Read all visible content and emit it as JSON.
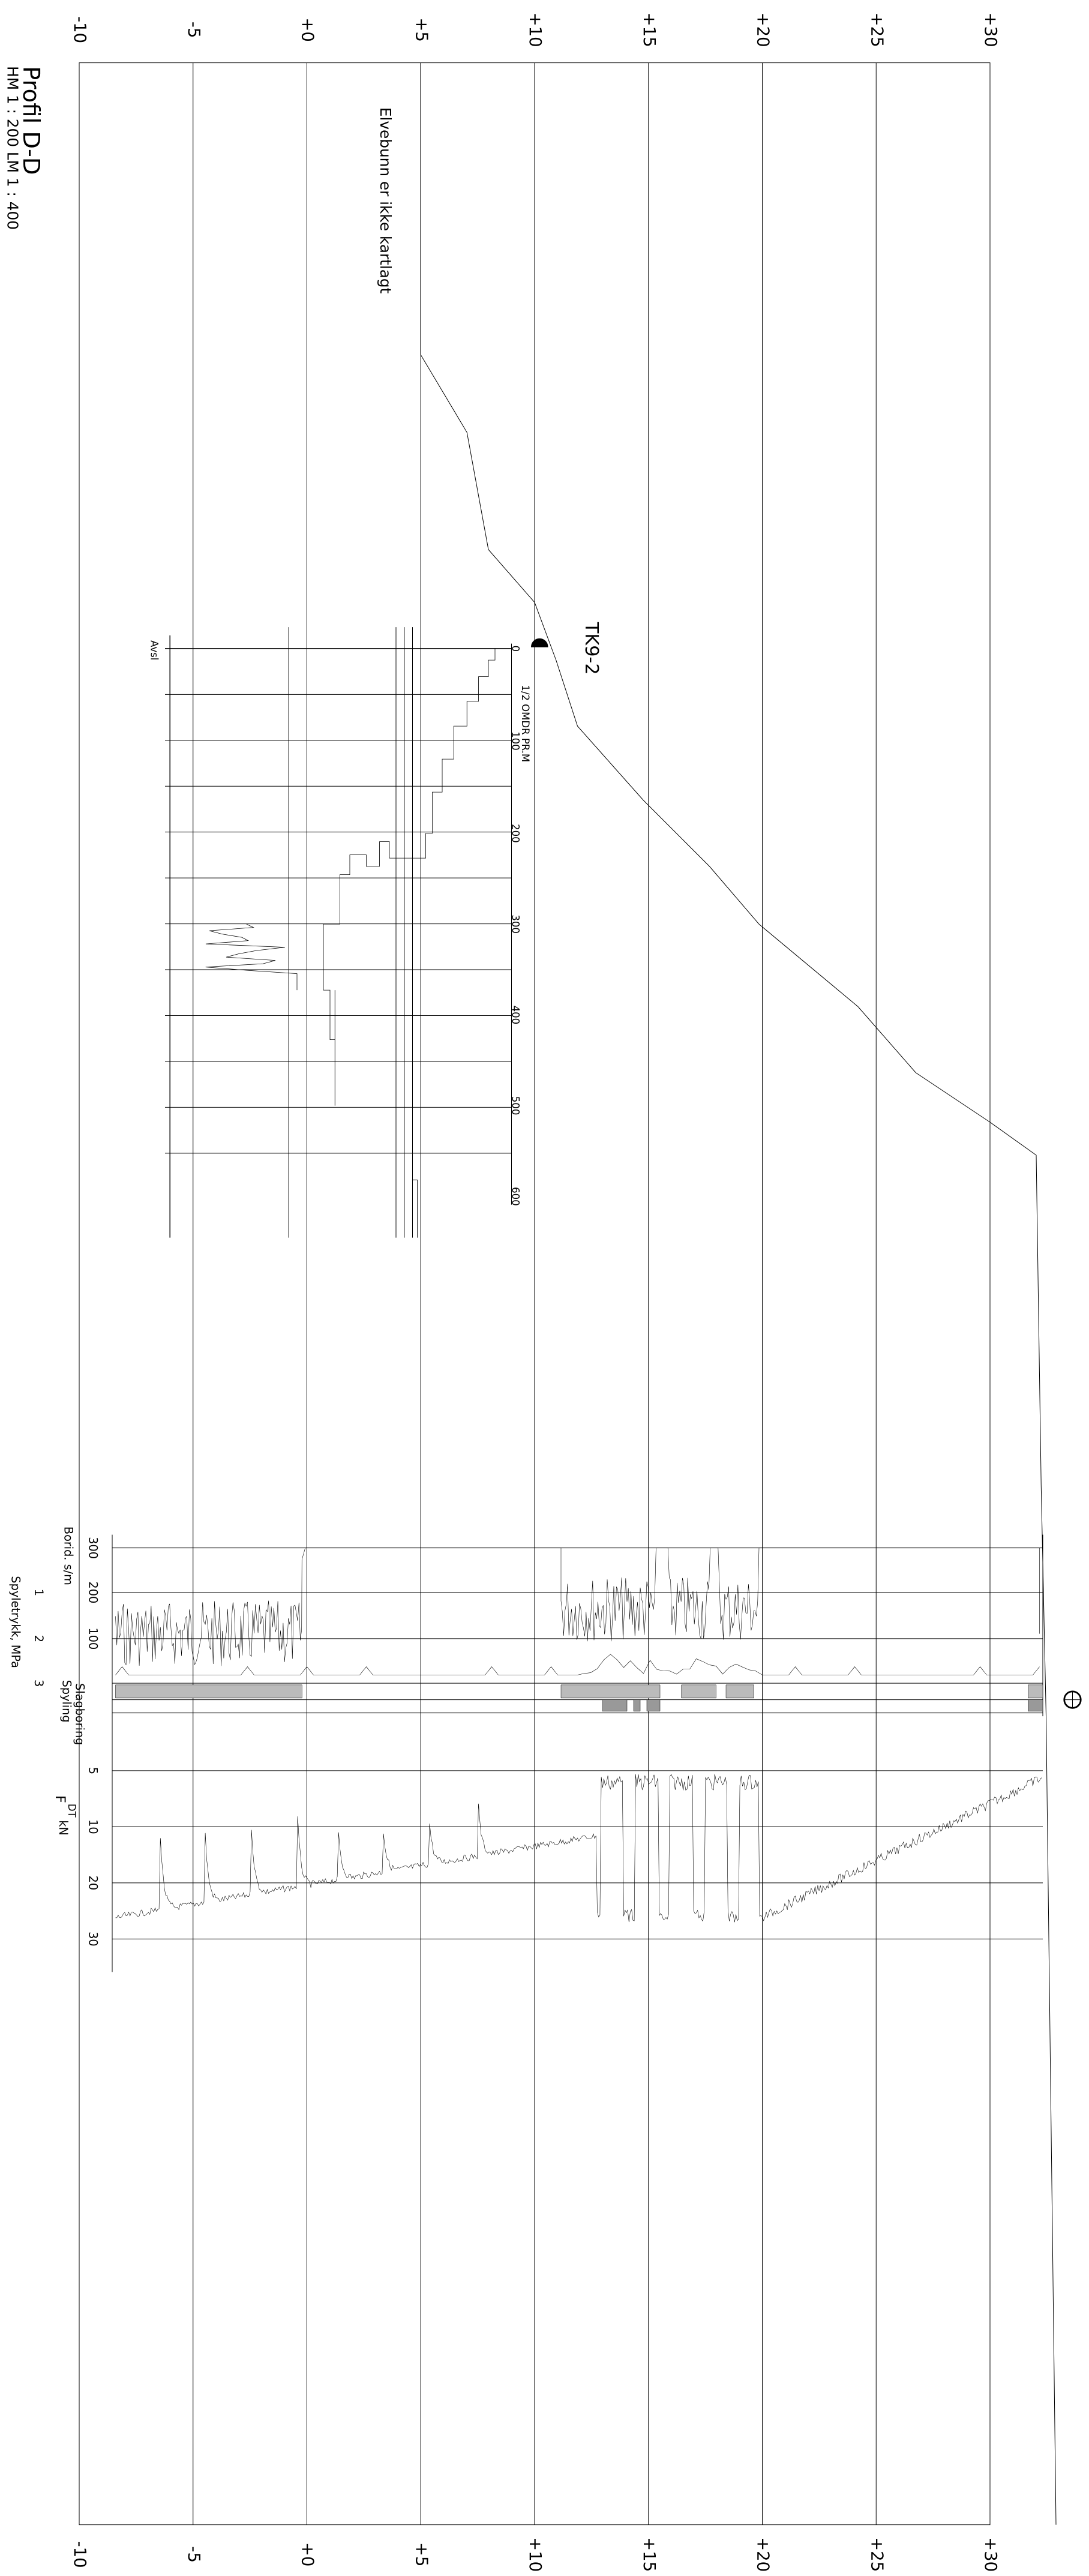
{
  "title": "Profil D-D",
  "scale": "HM 1 : 200   LM 1 : 400",
  "elevation_labels_top": [
    "-10",
    "-5",
    "+0",
    "+5",
    "+10",
    "+15",
    "+20",
    "+25",
    "+30"
  ],
  "elevation_labels_bottom": [
    "-10",
    "-5",
    "+0",
    "+5",
    "+10",
    "+15",
    "+20",
    "+25",
    "+30"
  ],
  "annotation": "Elvebunn er ikke kartlagt",
  "borehole": {
    "name": "TK9-2",
    "end_label": "Avsl",
    "rotation_label": "1/2 OMDR PR.M",
    "depth_labels": [
      "0",
      "100",
      "200",
      "300",
      "400",
      "500",
      "600"
    ]
  },
  "drilling_log": {
    "penetration_label": "Borid. s/m",
    "penetration_ticks": [
      "300",
      "200",
      "100"
    ],
    "pressure_label": "Spyletrykk, MPa",
    "pressure_ticks": [
      "1",
      "2",
      "3"
    ],
    "flushing_label": "Spyling",
    "hammering_label": "Slagboring",
    "force_ticks": [
      "5",
      "10",
      "20",
      "30"
    ],
    "force_label": "F",
    "force_subscript": "DT",
    "force_unit": "kN"
  }
}
